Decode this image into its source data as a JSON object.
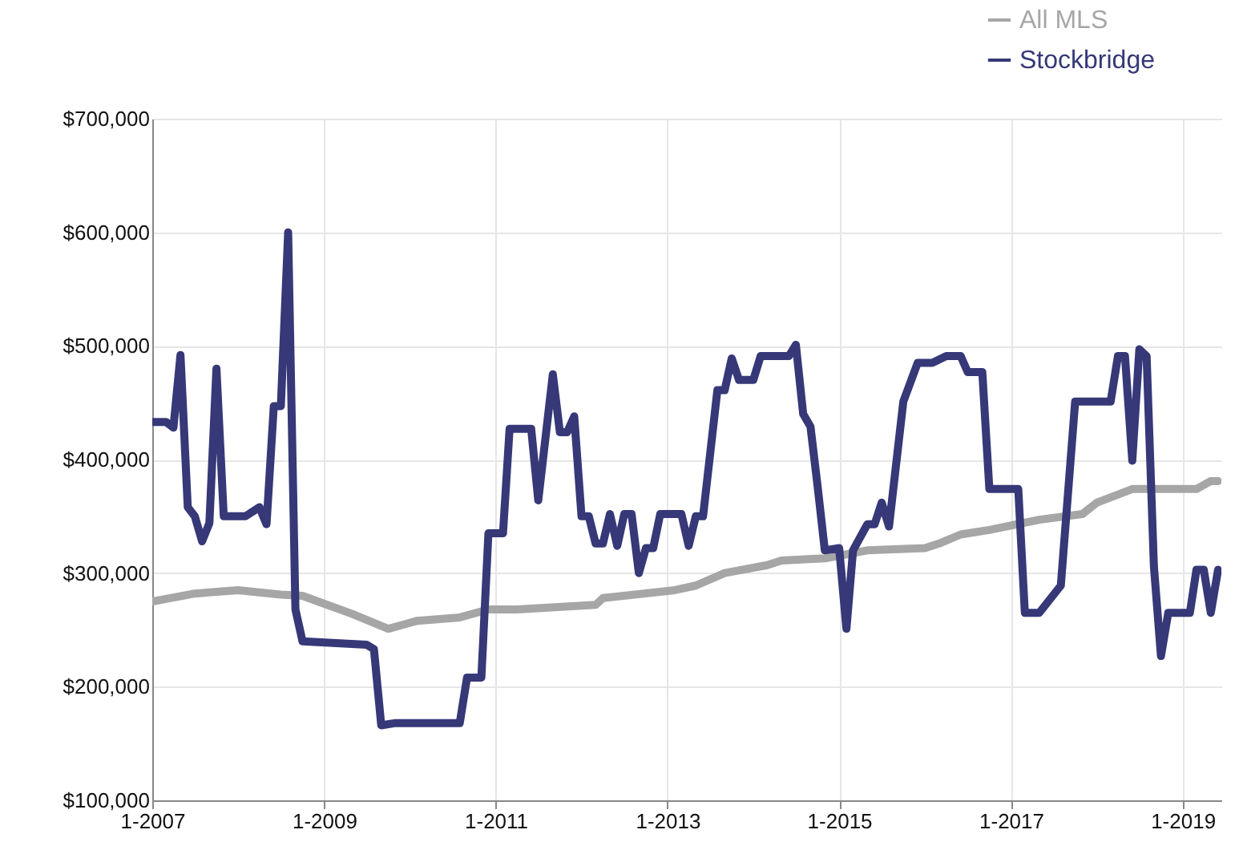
{
  "chart_data": {
    "type": "line",
    "xlim": [
      "2007-01",
      "2019-06-15"
    ],
    "xticks": [
      {
        "value": "2007-01",
        "label": "1-2007"
      },
      {
        "value": "2009-01",
        "label": "1-2009"
      },
      {
        "value": "2011-01",
        "label": "1-2011"
      },
      {
        "value": "2013-01",
        "label": "1-2013"
      },
      {
        "value": "2015-01",
        "label": "1-2015"
      },
      {
        "value": "2017-01",
        "label": "1-2017"
      },
      {
        "value": "2019-01",
        "label": "1-2019"
      }
    ],
    "ylim": [
      100000,
      700000
    ],
    "yticks": [
      {
        "value": 100000,
        "label": "$100,000"
      },
      {
        "value": 200000,
        "label": "$200,000"
      },
      {
        "value": 300000,
        "label": "$300,000"
      },
      {
        "value": 400000,
        "label": "$400,000"
      },
      {
        "value": 500000,
        "label": "$500,000"
      },
      {
        "value": 600000,
        "label": "$600,000"
      },
      {
        "value": 700000,
        "label": "$700,000"
      }
    ],
    "grid": true,
    "legend": "top right",
    "marker": "none",
    "line_style": "solid",
    "series": [
      {
        "name": "All MLS",
        "color": "#a6a6a6",
        "x": [
          "2007-01",
          "2007-07",
          "2008-01",
          "2008-07",
          "2008-10",
          "2009-05",
          "2009-10",
          "2010-02",
          "2010-08",
          "2010-12",
          "2011-04",
          "2012-03",
          "2012-04",
          "2013-02",
          "2013-05",
          "2013-09",
          "2014-03",
          "2014-05",
          "2014-11",
          "2015-05",
          "2016-01",
          "2016-03",
          "2016-06",
          "2016-10",
          "2017-05",
          "2017-11",
          "2018-01",
          "2018-06",
          "2019-03",
          "2019-05",
          "2019-06"
        ],
        "values": [
          275000,
          282000,
          285000,
          281000,
          280000,
          264000,
          251000,
          258000,
          261000,
          268000,
          268000,
          272000,
          278000,
          285000,
          289000,
          300000,
          307000,
          311000,
          313000,
          320000,
          322000,
          326000,
          334000,
          338000,
          347000,
          352000,
          362000,
          374000,
          374000,
          381000,
          381000
        ]
      },
      {
        "name": "Stockbridge",
        "color": "#363878",
        "x": [
          "2007-01",
          "2007-03",
          "2007-04",
          "2007-05",
          "2007-06",
          "2007-07",
          "2007-08",
          "2007-09",
          "2007-10",
          "2007-11",
          "2008-02",
          "2008-04",
          "2008-05",
          "2008-06",
          "2008-07",
          "2008-08",
          "2008-09",
          "2008-10",
          "2009-07",
          "2009-08",
          "2009-09",
          "2009-11",
          "2010-08",
          "2010-09",
          "2010-11",
          "2010-12",
          "2011-02",
          "2011-03",
          "2011-06",
          "2011-07",
          "2011-09",
          "2011-10",
          "2011-11",
          "2011-12",
          "2012-01",
          "2012-02",
          "2012-03",
          "2012-04",
          "2012-05",
          "2012-06",
          "2012-07",
          "2012-08",
          "2012-09",
          "2012-10",
          "2012-11",
          "2012-12",
          "2013-03",
          "2013-04",
          "2013-05",
          "2013-06",
          "2013-08",
          "2013-09",
          "2013-10",
          "2013-11",
          "2014-01",
          "2014-02",
          "2014-06",
          "2014-07",
          "2014-08",
          "2014-09",
          "2014-10",
          "2014-11",
          "2015-01",
          "2015-02",
          "2015-03",
          "2015-05",
          "2015-06",
          "2015-07",
          "2015-08",
          "2015-10",
          "2015-12",
          "2016-02",
          "2016-04",
          "2016-06",
          "2016-07",
          "2016-09",
          "2016-10",
          "2017-02",
          "2017-03",
          "2017-05",
          "2017-08",
          "2017-10",
          "2018-03",
          "2018-04",
          "2018-05",
          "2018-06",
          "2018-07",
          "2018-08",
          "2018-09",
          "2018-10",
          "2018-11",
          "2019-02",
          "2019-03",
          "2019-04",
          "2019-05",
          "2019-06"
        ],
        "values": [
          433000,
          433000,
          428000,
          492000,
          358000,
          350000,
          328000,
          344000,
          480000,
          350000,
          350000,
          358000,
          343000,
          447000,
          447000,
          600000,
          268000,
          240000,
          237000,
          233000,
          166000,
          168000,
          168000,
          208000,
          208000,
          335000,
          335000,
          427000,
          427000,
          364000,
          475000,
          424000,
          424000,
          438000,
          350000,
          350000,
          326000,
          326000,
          352000,
          324000,
          352000,
          352000,
          300000,
          322000,
          322000,
          352000,
          352000,
          324000,
          350000,
          350000,
          461000,
          461000,
          489000,
          470000,
          470000,
          491000,
          491000,
          501000,
          440000,
          429000,
          377000,
          320000,
          322000,
          251000,
          320000,
          343000,
          343000,
          362000,
          341000,
          451000,
          485000,
          485000,
          491000,
          491000,
          477000,
          477000,
          374000,
          374000,
          265000,
          265000,
          289000,
          451000,
          451000,
          491000,
          491000,
          399000,
          497000,
          491000,
          306000,
          227000,
          265000,
          265000,
          303000,
          303000,
          265000,
          303000
        ]
      }
    ]
  }
}
